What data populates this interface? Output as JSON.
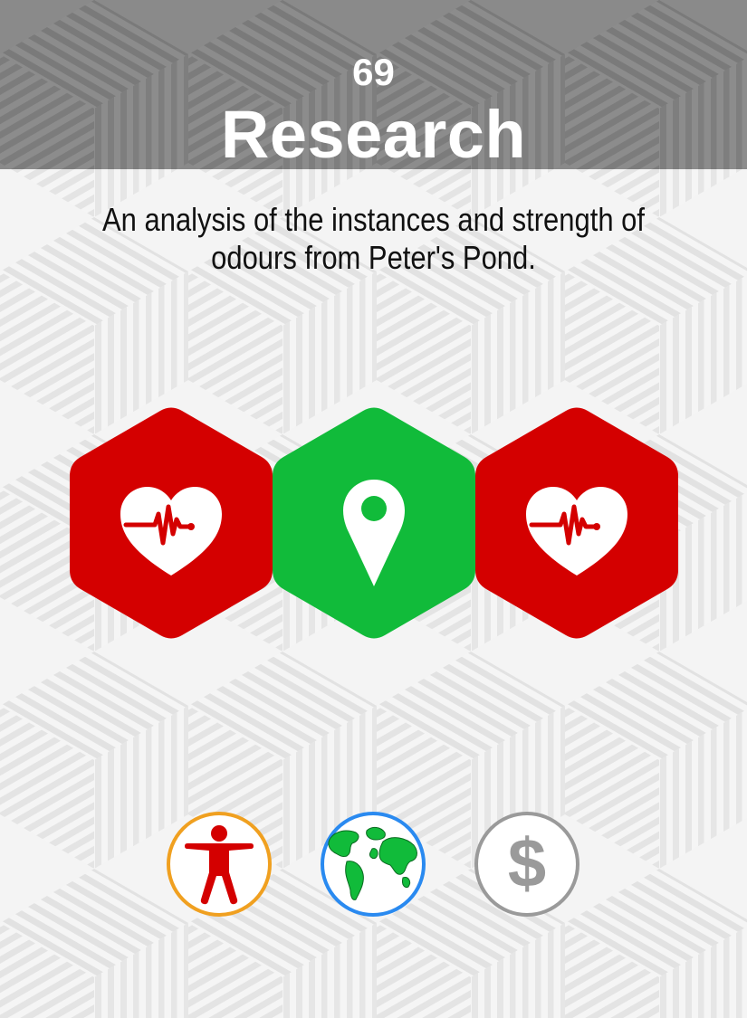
{
  "card": {
    "number": "69",
    "title": "Research",
    "description": "An analysis of the instances and strength of odours from Peter's Pond."
  },
  "hexagons": [
    {
      "icon": "heart-pulse-icon",
      "color": "#d40000"
    },
    {
      "icon": "location-pin-icon",
      "color": "#11bb3a"
    },
    {
      "icon": "heart-pulse-icon",
      "color": "#d40000"
    }
  ],
  "circle_icons": [
    {
      "icon": "person-icon",
      "ring_color": "#f0a020",
      "icon_color": "#d40000"
    },
    {
      "icon": "globe-icon",
      "ring_color": "#2a8af0",
      "icon_color": "#11bb3a"
    },
    {
      "icon": "dollar-icon",
      "ring_color": "#9a9a9a",
      "icon_color": "#9a9a9a"
    }
  ],
  "colors": {
    "header_bg": "#8a8a8a",
    "page_bg": "#f4f4f4"
  }
}
